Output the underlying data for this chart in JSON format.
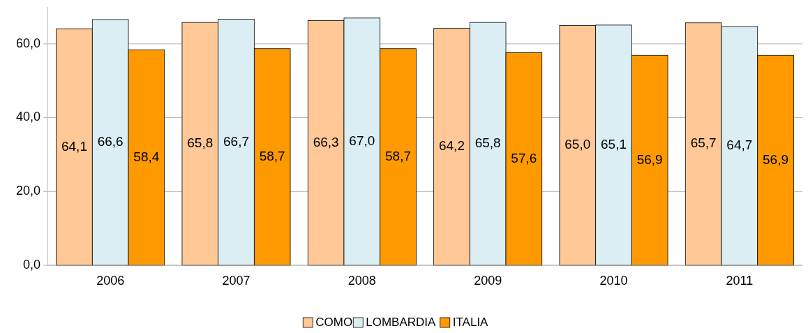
{
  "chart_data": {
    "type": "bar",
    "categories": [
      "2006",
      "2007",
      "2008",
      "2009",
      "2010",
      "2011"
    ],
    "series": [
      {
        "name": "COMO",
        "color": "#ffc896",
        "values": [
          64.1,
          65.8,
          66.3,
          64.2,
          65.0,
          65.7
        ],
        "value_labels": [
          "64,1",
          "65,8",
          "66,3",
          "64,2",
          "65,0",
          "65,7"
        ]
      },
      {
        "name": "LOMBARDIA",
        "color": "#daeef3",
        "values": [
          66.6,
          66.7,
          67.0,
          65.8,
          65.1,
          64.7
        ],
        "value_labels": [
          "66,6",
          "66,7",
          "67,0",
          "65,8",
          "65,1",
          "64,7"
        ]
      },
      {
        "name": "ITALIA",
        "color": "#ff9900",
        "values": [
          58.4,
          58.7,
          58.7,
          57.6,
          56.9,
          56.9
        ],
        "value_labels": [
          "58,4",
          "58,7",
          "58,7",
          "57,6",
          "56,9",
          "56,9"
        ]
      }
    ],
    "ylim": [
      0,
      70
    ],
    "yticks": [
      {
        "value": 0,
        "label": "0,0"
      },
      {
        "value": 20,
        "label": "20,0"
      },
      {
        "value": 40,
        "label": "40,0"
      },
      {
        "value": 60,
        "label": "60,0"
      }
    ],
    "grid": "y",
    "legend": "bottom"
  }
}
